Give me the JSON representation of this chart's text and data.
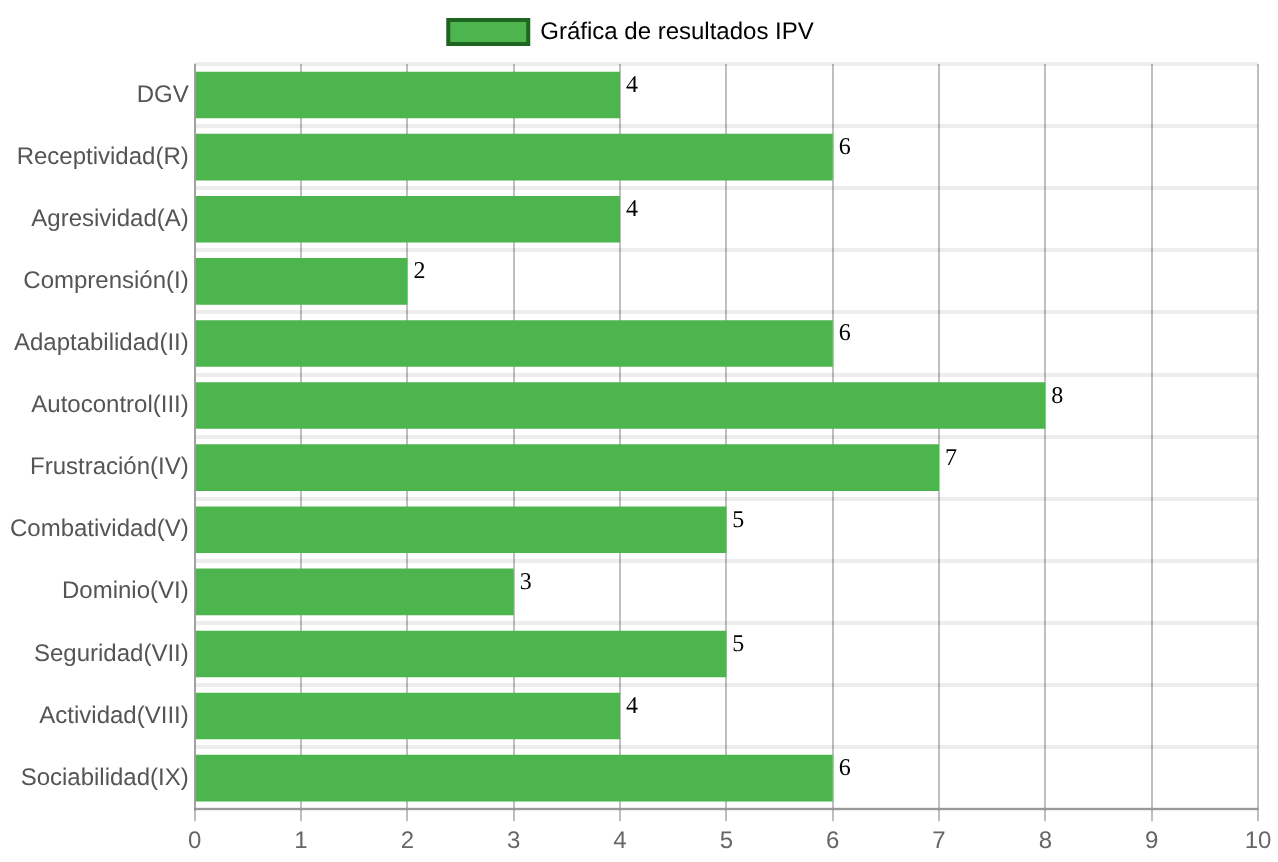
{
  "chart_data": {
    "type": "bar",
    "orientation": "horizontal",
    "categories": [
      "DGV",
      "Receptividad(R)",
      "Agresividad(A)",
      "Comprensión(I)",
      "Adaptabilidad(II)",
      "Autocontrol(III)",
      "Frustración(IV)",
      "Combatividad(V)",
      "Dominio(VI)",
      "Seguridad(VII)",
      "Actividad(VIII)",
      "Sociabilidad(IX)"
    ],
    "series": [
      {
        "name": "Gráfica de resultados IPV",
        "color": "#4db54d",
        "values": [
          4,
          6,
          4,
          2,
          6,
          8,
          7,
          5,
          3,
          5,
          4,
          6
        ]
      }
    ],
    "xlim": [
      0,
      10
    ],
    "xticks": [
      0,
      1,
      2,
      3,
      4,
      5,
      6,
      7,
      8,
      9,
      10
    ],
    "grid": true,
    "legend": "top",
    "data_labels": true
  }
}
